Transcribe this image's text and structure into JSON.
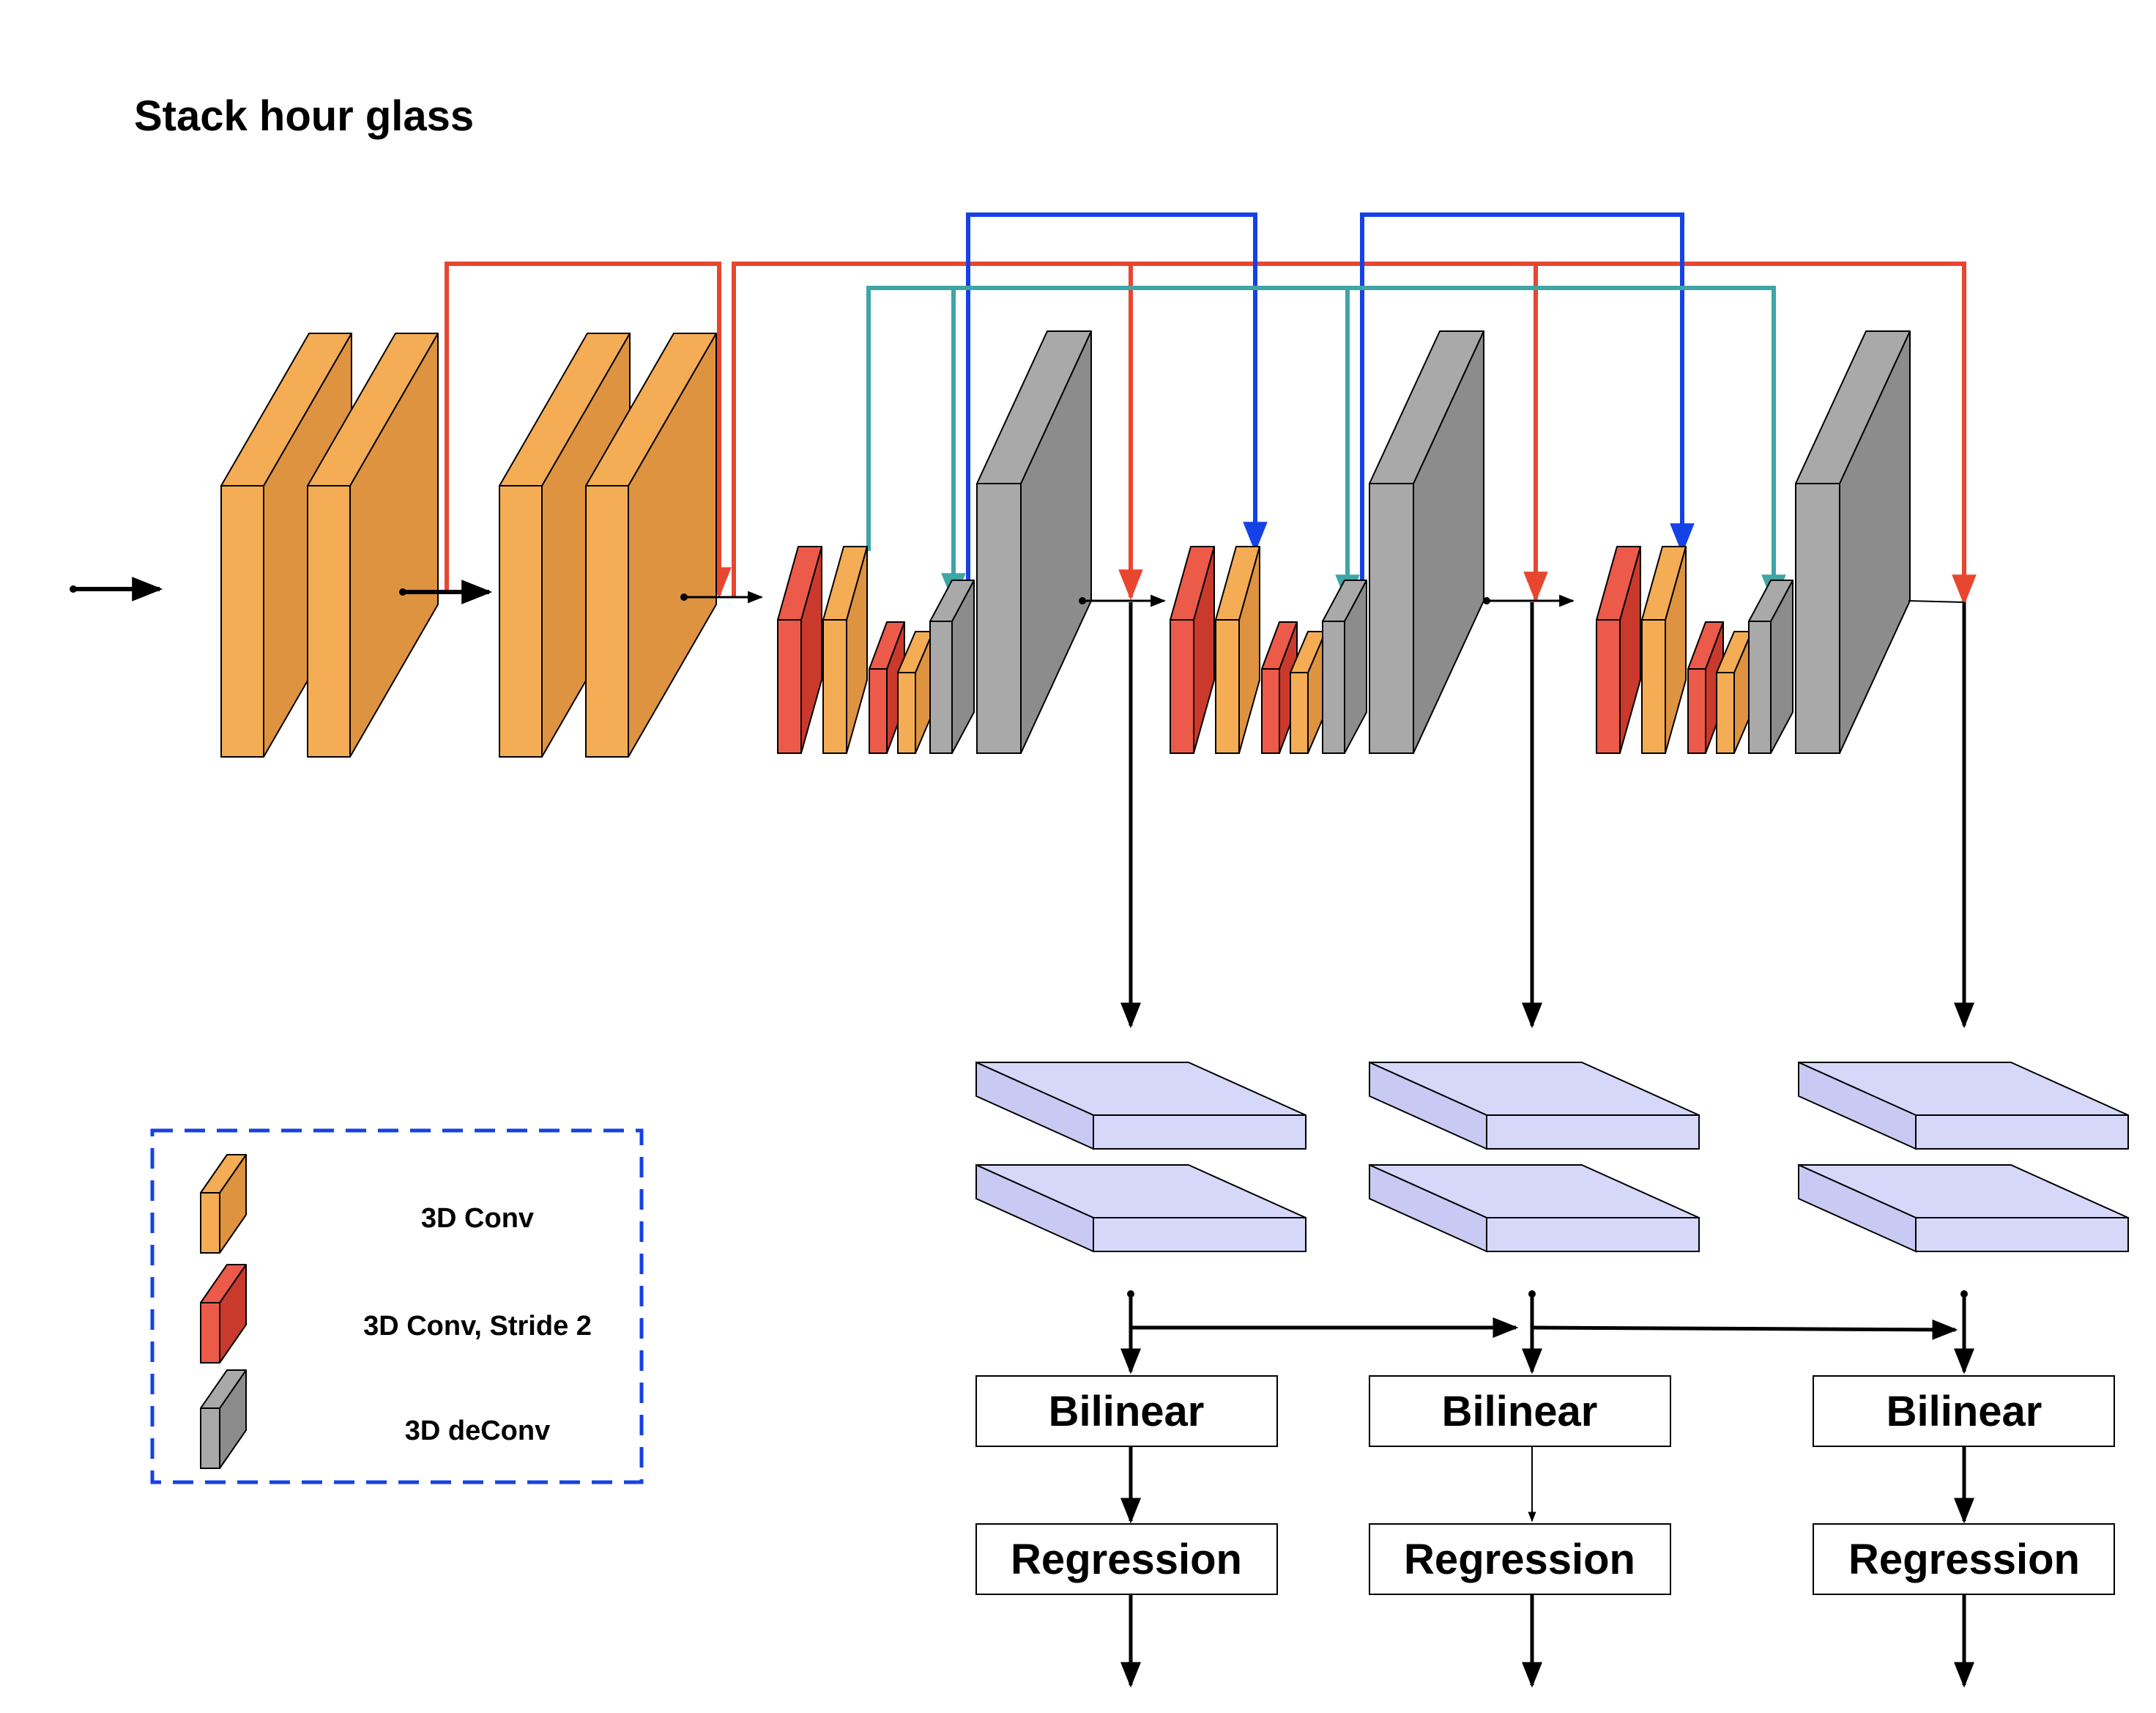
{
  "title": "Stack hour glass",
  "colors": {
    "conv": "#F4AC55",
    "conv_dark": "#DE9340",
    "conv_stride": "#EC5A49",
    "conv_stride_dark": "#C93A2C",
    "deconv": "#A9A9A9",
    "deconv_dark": "#8C8C8C",
    "output_block": "#D6D8FA",
    "skip_red": "#E8462F",
    "skip_blue": "#1542E6",
    "skip_teal": "#3FA5A5",
    "legend_border": "#1542E6",
    "arrow": "#000000"
  },
  "legend": {
    "items": [
      {
        "label": "3D Conv",
        "color": "conv",
        "icon": "orange-block-icon"
      },
      {
        "label": "3D Conv, Stride 2",
        "color": "conv_stride",
        "icon": "red-block-icon"
      },
      {
        "label": "3D deConv",
        "color": "deconv",
        "icon": "gray-block-icon"
      }
    ]
  },
  "stacks": [
    {
      "bilinear": "Bilinear",
      "regression": "Regression"
    },
    {
      "bilinear": "Bilinear",
      "regression": "Regression"
    },
    {
      "bilinear": "Bilinear",
      "regression": "Regression"
    }
  ]
}
